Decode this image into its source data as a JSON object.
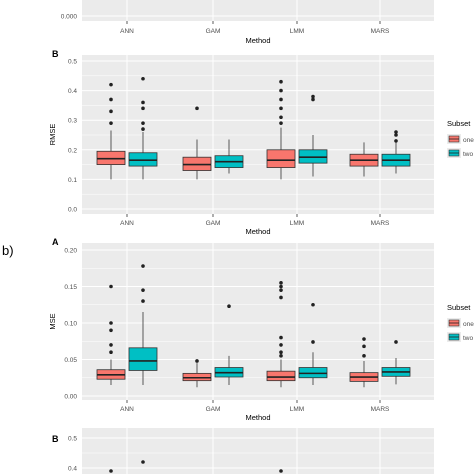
{
  "figure": {
    "panel_b_label": "b)",
    "legend_title": "Subset",
    "legend_items": [
      "one",
      "two"
    ],
    "colors": {
      "one": "#F8766D",
      "two": "#00BFC4",
      "panel_bg": "#EBEBEB",
      "grid": "#FFFFFF",
      "text": "#4D4D4D"
    }
  },
  "chart_data": [
    {
      "type": "box",
      "title": "",
      "panel": "",
      "xlabel": "Method",
      "ylabel": "",
      "categories": [
        "ANN",
        "GAM",
        "LMM",
        "MARS"
      ],
      "yticks": [
        "0.000"
      ],
      "note": "cropped at top of image"
    },
    {
      "type": "box",
      "panel": "B",
      "xlabel": "Method",
      "ylabel": "RMSE",
      "ylim": [
        0,
        0.5
      ],
      "yticks": [
        "0.0",
        "0.1",
        "0.2",
        "0.3",
        "0.4",
        "0.5"
      ],
      "categories": [
        "ANN",
        "GAM",
        "LMM",
        "MARS"
      ],
      "legend": {
        "title": "Subset",
        "entries": [
          "one",
          "two"
        ]
      },
      "series": [
        {
          "name": "one",
          "boxes": [
            {
              "category": "ANN",
              "whisker_low": 0.1,
              "q1": 0.15,
              "median": 0.17,
              "q3": 0.195,
              "whisker_high": 0.265,
              "outliers": [
                0.29,
                0.33,
                0.37,
                0.42
              ]
            },
            {
              "category": "GAM",
              "whisker_low": 0.1,
              "q1": 0.13,
              "median": 0.15,
              "q3": 0.175,
              "whisker_high": 0.235,
              "outliers": [
                0.34
              ]
            },
            {
              "category": "LMM",
              "whisker_low": 0.1,
              "q1": 0.14,
              "median": 0.165,
              "q3": 0.2,
              "whisker_high": 0.275,
              "outliers": [
                0.29,
                0.31,
                0.34,
                0.37,
                0.4,
                0.43
              ]
            },
            {
              "category": "MARS",
              "whisker_low": 0.11,
              "q1": 0.145,
              "median": 0.165,
              "q3": 0.185,
              "whisker_high": 0.225,
              "outliers": []
            }
          ]
        },
        {
          "name": "two",
          "boxes": [
            {
              "category": "ANN",
              "whisker_low": 0.1,
              "q1": 0.145,
              "median": 0.165,
              "q3": 0.19,
              "whisker_high": 0.26,
              "outliers": [
                0.27,
                0.29,
                0.34,
                0.36,
                0.44
              ]
            },
            {
              "category": "GAM",
              "whisker_low": 0.12,
              "q1": 0.14,
              "median": 0.16,
              "q3": 0.18,
              "whisker_high": 0.235,
              "outliers": []
            },
            {
              "category": "LMM",
              "whisker_low": 0.11,
              "q1": 0.155,
              "median": 0.175,
              "q3": 0.2,
              "whisker_high": 0.25,
              "outliers": [
                0.37,
                0.38
              ]
            },
            {
              "category": "MARS",
              "whisker_low": 0.12,
              "q1": 0.145,
              "median": 0.165,
              "q3": 0.185,
              "whisker_high": 0.225,
              "outliers": [
                0.23,
                0.25,
                0.26
              ]
            }
          ]
        }
      ]
    },
    {
      "type": "box",
      "panel": "A",
      "xlabel": "Method",
      "ylabel": "MSE",
      "ylim": [
        0,
        0.2
      ],
      "yticks": [
        "0.00",
        "0.05",
        "0.10",
        "0.15",
        "0.20"
      ],
      "categories": [
        "ANN",
        "GAM",
        "LMM",
        "MARS"
      ],
      "legend": {
        "title": "Subset",
        "entries": [
          "one",
          "two"
        ]
      },
      "series": [
        {
          "name": "one",
          "boxes": [
            {
              "category": "ANN",
              "whisker_low": 0.015,
              "q1": 0.023,
              "median": 0.029,
              "q3": 0.036,
              "whisker_high": 0.05,
              "outliers": [
                0.06,
                0.07,
                0.09,
                0.1,
                0.15
              ]
            },
            {
              "category": "GAM",
              "whisker_low": 0.012,
              "q1": 0.021,
              "median": 0.025,
              "q3": 0.031,
              "whisker_high": 0.045,
              "outliers": [
                0.048
              ]
            },
            {
              "category": "LMM",
              "whisker_low": 0.012,
              "q1": 0.021,
              "median": 0.026,
              "q3": 0.034,
              "whisker_high": 0.05,
              "outliers": [
                0.055,
                0.06,
                0.07,
                0.08,
                0.135,
                0.145,
                0.15,
                0.155
              ]
            },
            {
              "category": "MARS",
              "whisker_low": 0.012,
              "q1": 0.02,
              "median": 0.026,
              "q3": 0.032,
              "whisker_high": 0.048,
              "outliers": [
                0.055,
                0.068,
                0.078
              ]
            }
          ]
        },
        {
          "name": "two",
          "boxes": [
            {
              "category": "ANN",
              "whisker_low": 0.015,
              "q1": 0.035,
              "median": 0.048,
              "q3": 0.066,
              "whisker_high": 0.115,
              "outliers": [
                0.13,
                0.145,
                0.178
              ]
            },
            {
              "category": "GAM",
              "whisker_low": 0.015,
              "q1": 0.026,
              "median": 0.032,
              "q3": 0.039,
              "whisker_high": 0.055,
              "outliers": [
                0.123
              ]
            },
            {
              "category": "LMM",
              "whisker_low": 0.015,
              "q1": 0.025,
              "median": 0.031,
              "q3": 0.039,
              "whisker_high": 0.06,
              "outliers": [
                0.074,
                0.125
              ]
            },
            {
              "category": "MARS",
              "whisker_low": 0.016,
              "q1": 0.027,
              "median": 0.033,
              "q3": 0.039,
              "whisker_high": 0.052,
              "outliers": [
                0.074
              ]
            }
          ]
        }
      ]
    },
    {
      "type": "box",
      "panel": "B",
      "xlabel": "",
      "ylabel": "",
      "yticks": [
        "0.4",
        "0.5"
      ],
      "note": "cropped at bottom of image",
      "visible_points": [
        {
          "category": "ANN",
          "series": "one",
          "value": 0.39
        },
        {
          "category": "ANN",
          "series": "two",
          "value": 0.42
        },
        {
          "category": "LMM",
          "series": "one",
          "value": 0.39
        }
      ]
    }
  ]
}
